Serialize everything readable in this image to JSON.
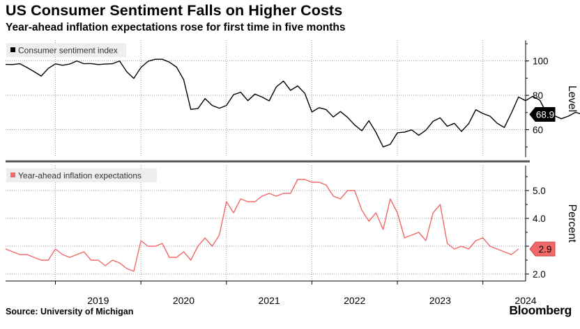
{
  "header": {
    "title": "US Consumer Sentiment Falls on Higher Costs",
    "subtitle": "Year-ahead inflation expectations rose for first time in five months"
  },
  "footer": {
    "source": "Source: University of Michigan",
    "brand": "Bloomberg"
  },
  "colors": {
    "sentiment": "#000000",
    "inflation": "#f06868",
    "grid": "#9a9a9a",
    "divider": "#555555",
    "legend_bg": "#eeeeee"
  },
  "chart_data": [
    {
      "type": "line",
      "panel": "top",
      "title": "Consumer sentiment index",
      "ylabel": "Level",
      "ylim": [
        44,
        112
      ],
      "yticks": [
        60,
        80,
        100
      ],
      "ytick_labels": [
        "60",
        "80",
        "100"
      ],
      "grid": true,
      "legend": "top-left",
      "last_value_label": "68.9",
      "x_start": 2018.417,
      "x_step": 0.08333,
      "series": [
        {
          "name": "Consumer sentiment index",
          "values": [
            98.0,
            97.9,
            98.4,
            96.2,
            93.8,
            91.2,
            95.7,
            98.3,
            97.5,
            98.2,
            100.0,
            98.4,
            98.5,
            97.9,
            98.2,
            98.4,
            100.0,
            93.8,
            89.8,
            96.2,
            99.8,
            101.0,
            101.0,
            99.3,
            96.4,
            89.1,
            71.8,
            72.3,
            78.1,
            74.1,
            72.5,
            74.1,
            80.4,
            81.8,
            76.9,
            80.7,
            79.0,
            76.8,
            84.9,
            88.3,
            82.9,
            85.5,
            81.2,
            70.3,
            72.8,
            71.7,
            67.4,
            70.6,
            67.2,
            62.8,
            59.4,
            65.2,
            58.4,
            50.0,
            51.5,
            58.2,
            58.6,
            59.9,
            56.8,
            59.7,
            64.9,
            66.9,
            62.0,
            63.7,
            59.0,
            63.5,
            71.6,
            69.4,
            67.9,
            63.8,
            61.3,
            69.7,
            79.0,
            76.9,
            79.4,
            77.2,
            69.1,
            68.2,
            66.4,
            67.9,
            70.1,
            68.9
          ]
        }
      ],
      "x_tick_years": [
        2019,
        2020,
        2021,
        2022,
        2023,
        2024
      ]
    },
    {
      "type": "line",
      "panel": "bottom",
      "title": "Year-ahead inflation expectations",
      "ylabel": "Percent",
      "ylim": [
        1.75,
        5.9
      ],
      "yticks": [
        2.0,
        3.0,
        4.0,
        5.0
      ],
      "ytick_labels": [
        "2.0",
        "",
        "4.0",
        "5.0"
      ],
      "grid": true,
      "legend": "top-left",
      "last_value_label": "2.9",
      "x_start": 2018.417,
      "x_step": 0.08333,
      "series": [
        {
          "name": "Year-ahead inflation expectations",
          "values": [
            2.9,
            2.8,
            2.7,
            2.7,
            2.6,
            2.5,
            2.5,
            2.9,
            2.7,
            2.6,
            2.7,
            2.8,
            2.5,
            2.5,
            2.3,
            2.5,
            2.4,
            2.2,
            2.1,
            3.2,
            3.0,
            3.0,
            3.1,
            2.6,
            2.6,
            2.8,
            2.5,
            3.0,
            3.3,
            3.0,
            3.4,
            4.6,
            4.2,
            4.7,
            4.6,
            4.6,
            4.8,
            4.9,
            4.8,
            4.9,
            4.9,
            5.4,
            5.4,
            5.3,
            5.3,
            5.2,
            4.8,
            4.7,
            5.0,
            5.0,
            4.3,
            3.9,
            4.2,
            3.6,
            4.7,
            4.2,
            3.3,
            3.4,
            3.5,
            3.2,
            4.2,
            4.5,
            3.1,
            2.9,
            3.0,
            2.9,
            3.2,
            3.3,
            3.0,
            2.9,
            2.8,
            2.7,
            2.9
          ]
        }
      ]
    }
  ]
}
